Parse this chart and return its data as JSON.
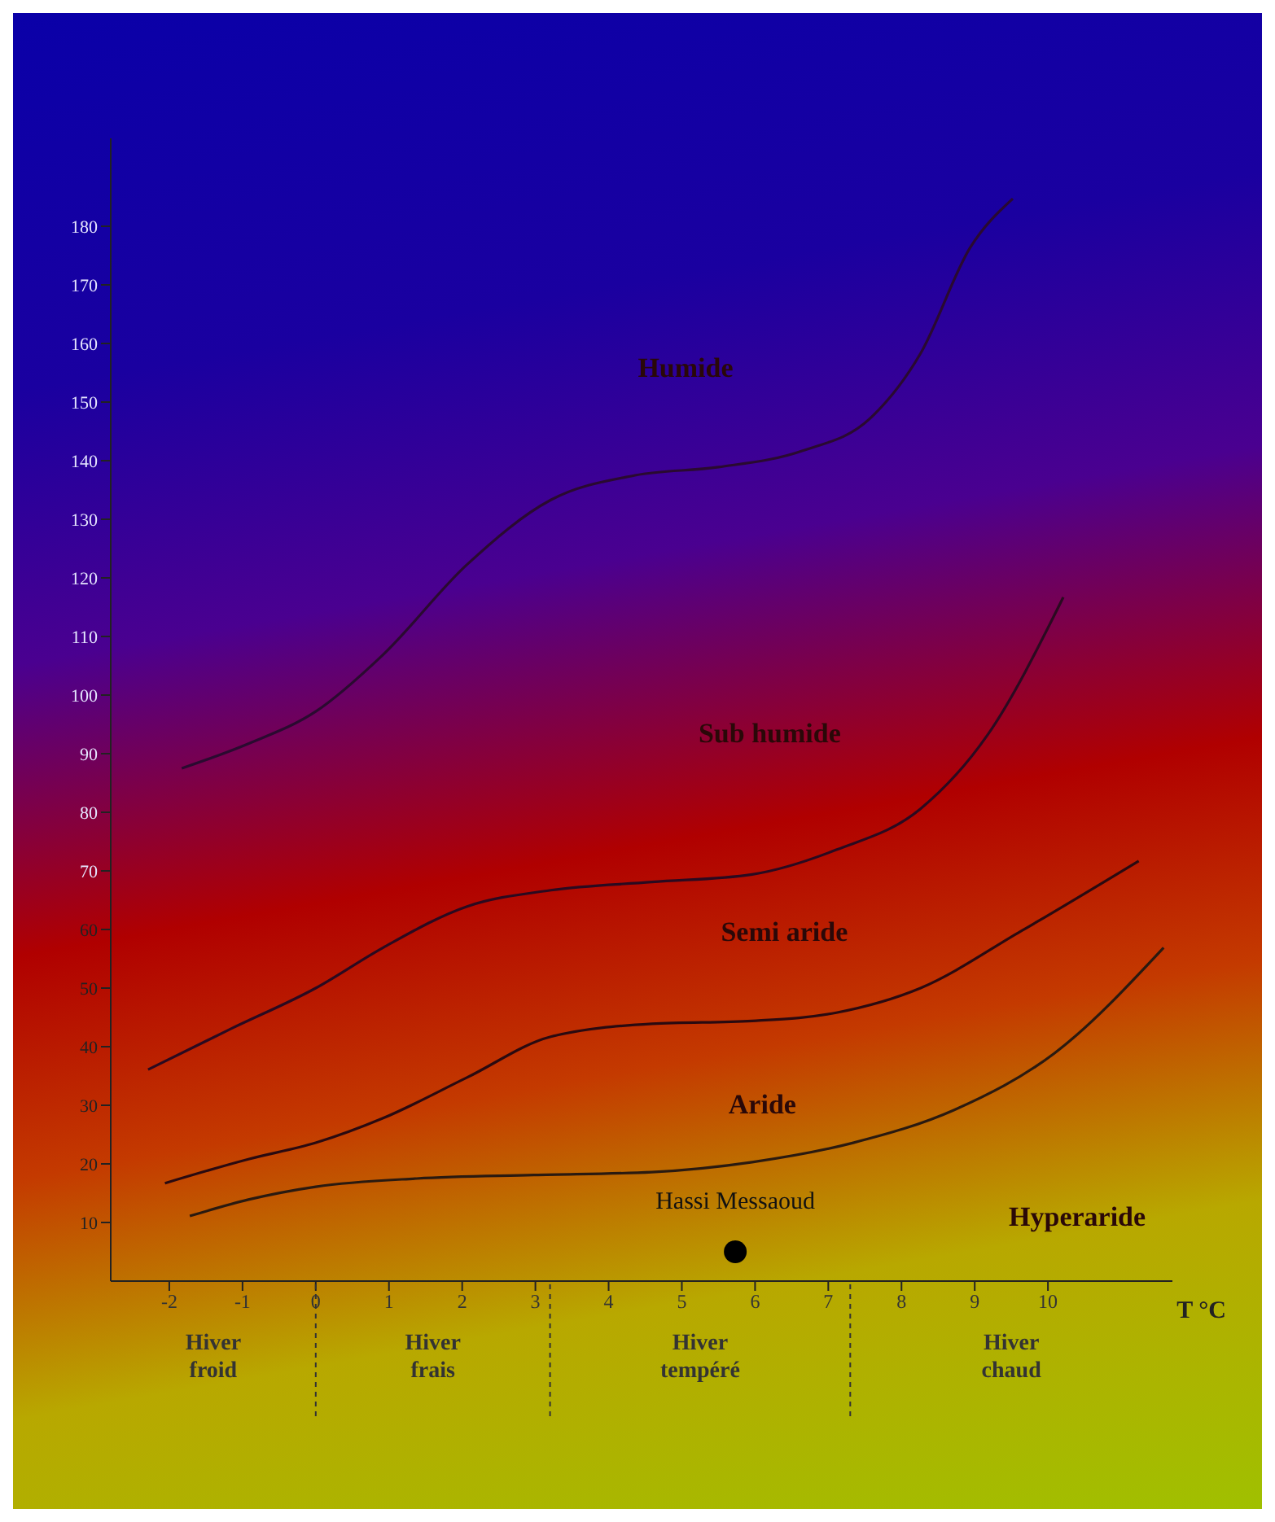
{
  "chart_data": {
    "type": "line",
    "xlabel": "T °C",
    "xlim": [
      -2.8,
      11.7
    ],
    "xticks": [
      -2,
      -1,
      0,
      1,
      2,
      3,
      4,
      5,
      6,
      7,
      8,
      9,
      10
    ],
    "ylim": [
      0,
      195
    ],
    "yticks": [
      10,
      20,
      30,
      40,
      50,
      60,
      70,
      80,
      90,
      100,
      110,
      120,
      130,
      140,
      150,
      160,
      170,
      180
    ],
    "grid": false,
    "legend": false,
    "marker": "none",
    "line_style": "solid",
    "series": [
      {
        "color": "#2a0a30",
        "x": [
          -1.83,
          -0.92,
          0,
          0.92,
          2.06,
          3.21,
          4.36,
          5.5,
          6.65,
          7.57,
          8.26,
          8.94,
          9.52
        ],
        "values": [
          87.5,
          91.7,
          97.2,
          106.9,
          122.2,
          133.3,
          137.5,
          138.9,
          141.7,
          147.2,
          158.3,
          176.4,
          184.7
        ]
      },
      {
        "color": "#2a0a20",
        "x": [
          -2.29,
          -1.15,
          0,
          0.92,
          2.06,
          3.21,
          4.59,
          5.96,
          7.11,
          8.26,
          9.17,
          10.21
        ],
        "values": [
          36.1,
          43.1,
          50,
          56.9,
          63.9,
          66.7,
          68.1,
          69.4,
          73.6,
          80.6,
          93.1,
          116.7
        ]
      },
      {
        "color": "#2a0a10",
        "x": [
          -2.06,
          -0.92,
          0,
          0.92,
          2.06,
          3.21,
          4.59,
          5.96,
          7.11,
          8.26,
          9.63,
          11.24
        ],
        "values": [
          16.7,
          20.8,
          23.6,
          27.8,
          34.7,
          41.7,
          43.9,
          44.4,
          45.8,
          50,
          59.7,
          71.7
        ]
      },
      {
        "color": "#2a1a10",
        "x": [
          -1.72,
          -0.92,
          0,
          1.38,
          2.98,
          4.59,
          5.96,
          7.34,
          8.72,
          10.09,
          11.58
        ],
        "values": [
          11.1,
          13.9,
          16.1,
          17.5,
          18.1,
          18.6,
          20.3,
          23.6,
          29.2,
          38.9,
          56.9
        ]
      },
      {
        "type": "scatter",
        "name": "Hassi Messaoud",
        "color": "#000000",
        "marker": "circle",
        "x": [
          5.73
        ],
        "values": [
          5
        ]
      }
    ],
    "annotations": [
      "Humide",
      "Sub humide",
      "Semi aride",
      "Aride",
      "Hyperaride",
      "Hiver froid",
      "Hiver frais",
      "Hiver tempéré",
      "Hiver chaud"
    ]
  }
}
